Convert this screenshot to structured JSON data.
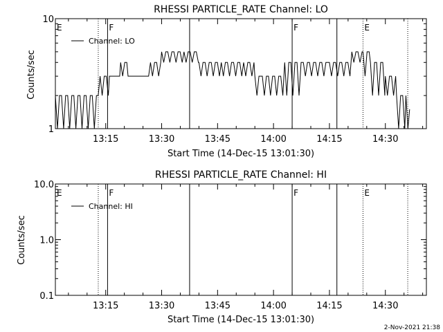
{
  "footer": {
    "timestamp": "2-Nov-2021 21:38"
  },
  "chart_data": [
    {
      "type": "line",
      "title": "RHESSI PARTICLE_RATE Channel: LO",
      "xlabel": "Start Time (14-Dec-15 13:01:30)",
      "ylabel": "Counts/sec",
      "yscale": "log",
      "ylim": [
        1,
        10
      ],
      "xlim": [
        "13:01:30",
        "14:41:00"
      ],
      "x_ticks": [
        "13:15",
        "13:30",
        "13:45",
        "14:00",
        "14:15",
        "14:30"
      ],
      "y_tick_labels": [
        "1",
        "10"
      ],
      "legend": "Channel: LO",
      "legend_position": "top-left",
      "markers": [
        {
          "label": "E",
          "time": "13:01:30",
          "style": "dotted"
        },
        {
          "label": "",
          "time": "13:13:00",
          "style": "dotted"
        },
        {
          "label": "F",
          "time": "13:15:30",
          "style": "solid"
        },
        {
          "label": "",
          "time": "13:37:30",
          "style": "solid"
        },
        {
          "label": "F",
          "time": "14:05:00",
          "style": "solid"
        },
        {
          "label": "",
          "time": "14:17:00",
          "style": "solid"
        },
        {
          "label": "E",
          "time": "14:24:00",
          "style": "dotted"
        },
        {
          "label": "",
          "time": "14:36:00",
          "style": "dotted"
        }
      ],
      "series": [
        {
          "color": "#000000",
          "x": [
            "13:01:30",
            "13:13:00",
            "13:13:30",
            "13:16:00",
            "13:19:00",
            "13:21:00",
            "13:27:00",
            "13:30:00",
            "13:36:00",
            "13:40:00",
            "13:46:00",
            "13:52:00",
            "13:55:00",
            "13:57:00",
            "14:03:00",
            "14:08:00",
            "14:15:00",
            "14:21:00",
            "14:24:00",
            "14:26:00",
            "14:30:00",
            "14:33:00",
            "14:35:30",
            "14:36:30"
          ],
          "y_min": [
            1,
            2,
            2,
            3,
            3,
            3,
            3,
            4,
            4,
            3,
            3,
            3,
            2,
            2,
            2,
            3,
            3,
            4,
            3,
            2,
            2,
            1,
            1,
            1
          ],
          "y_max": [
            2,
            2,
            3,
            3,
            4,
            3,
            4,
            5,
            5,
            4,
            4,
            4,
            3,
            3,
            4,
            4,
            4,
            5,
            5,
            4,
            3,
            2,
            2,
            2
          ],
          "y": [
            1.5,
            2,
            2.5,
            3,
            3.5,
            3,
            3.5,
            4.5,
            4.5,
            3.5,
            3.5,
            3.5,
            2.5,
            2.5,
            3,
            3.5,
            3.5,
            4.5,
            4,
            3,
            2.5,
            1.5,
            1.5,
            1.5
          ]
        }
      ]
    },
    {
      "type": "line",
      "title": "RHESSI PARTICLE_RATE Channel: HI",
      "xlabel": "Start Time (14-Dec-15 13:01:30)",
      "ylabel": "Counts/sec",
      "yscale": "log",
      "ylim": [
        0.1,
        10
      ],
      "xlim": [
        "13:01:30",
        "14:41:00"
      ],
      "x_ticks": [
        "13:15",
        "13:30",
        "13:45",
        "14:00",
        "14:15",
        "14:30"
      ],
      "y_tick_labels": [
        "0.1",
        "1.0",
        "10.0"
      ],
      "legend": "Channel: HI",
      "legend_position": "top-left",
      "markers": [
        {
          "label": "E",
          "time": "13:01:30",
          "style": "dotted"
        },
        {
          "label": "",
          "time": "13:13:00",
          "style": "dotted"
        },
        {
          "label": "F",
          "time": "13:15:30",
          "style": "solid"
        },
        {
          "label": "",
          "time": "13:37:30",
          "style": "solid"
        },
        {
          "label": "F",
          "time": "14:05:00",
          "style": "solid"
        },
        {
          "label": "",
          "time": "14:17:00",
          "style": "solid"
        },
        {
          "label": "E",
          "time": "14:24:00",
          "style": "dotted"
        },
        {
          "label": "",
          "time": "14:36:00",
          "style": "dotted"
        }
      ],
      "series": [
        {
          "color": "#000000",
          "x": [],
          "y": []
        }
      ]
    }
  ]
}
